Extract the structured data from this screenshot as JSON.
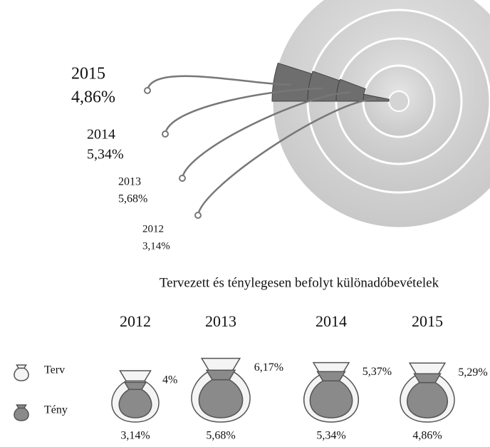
{
  "chart_data": [
    {
      "type": "pie",
      "categories": [
        "2015",
        "2014",
        "2013",
        "2012"
      ],
      "values": [
        4.86,
        5.34,
        5.68,
        3.14
      ],
      "value_labels": [
        "4,86%",
        "5,34%",
        "5,68%",
        "3,14%"
      ],
      "color": "#6e6e6e"
    },
    {
      "type": "bag",
      "title": "Tervezett és ténylegesen befolyt különadóbevételek",
      "categories": [
        "2012",
        "2013",
        "2014",
        "2015"
      ],
      "series": [
        {
          "name": "Terv",
          "color": "#f4f4f4",
          "values": [
            4,
            6.17,
            5.37,
            5.29
          ],
          "value_labels": [
            "4%",
            "6,17%",
            "5,37%",
            "5,29%"
          ]
        },
        {
          "name": "Tény",
          "color": "#8a8a8a",
          "values": [
            3.14,
            5.68,
            5.34,
            4.86
          ],
          "value_labels": [
            "3,14%",
            "5,68%",
            "5,34%",
            "4,86%"
          ]
        }
      ]
    }
  ]
}
